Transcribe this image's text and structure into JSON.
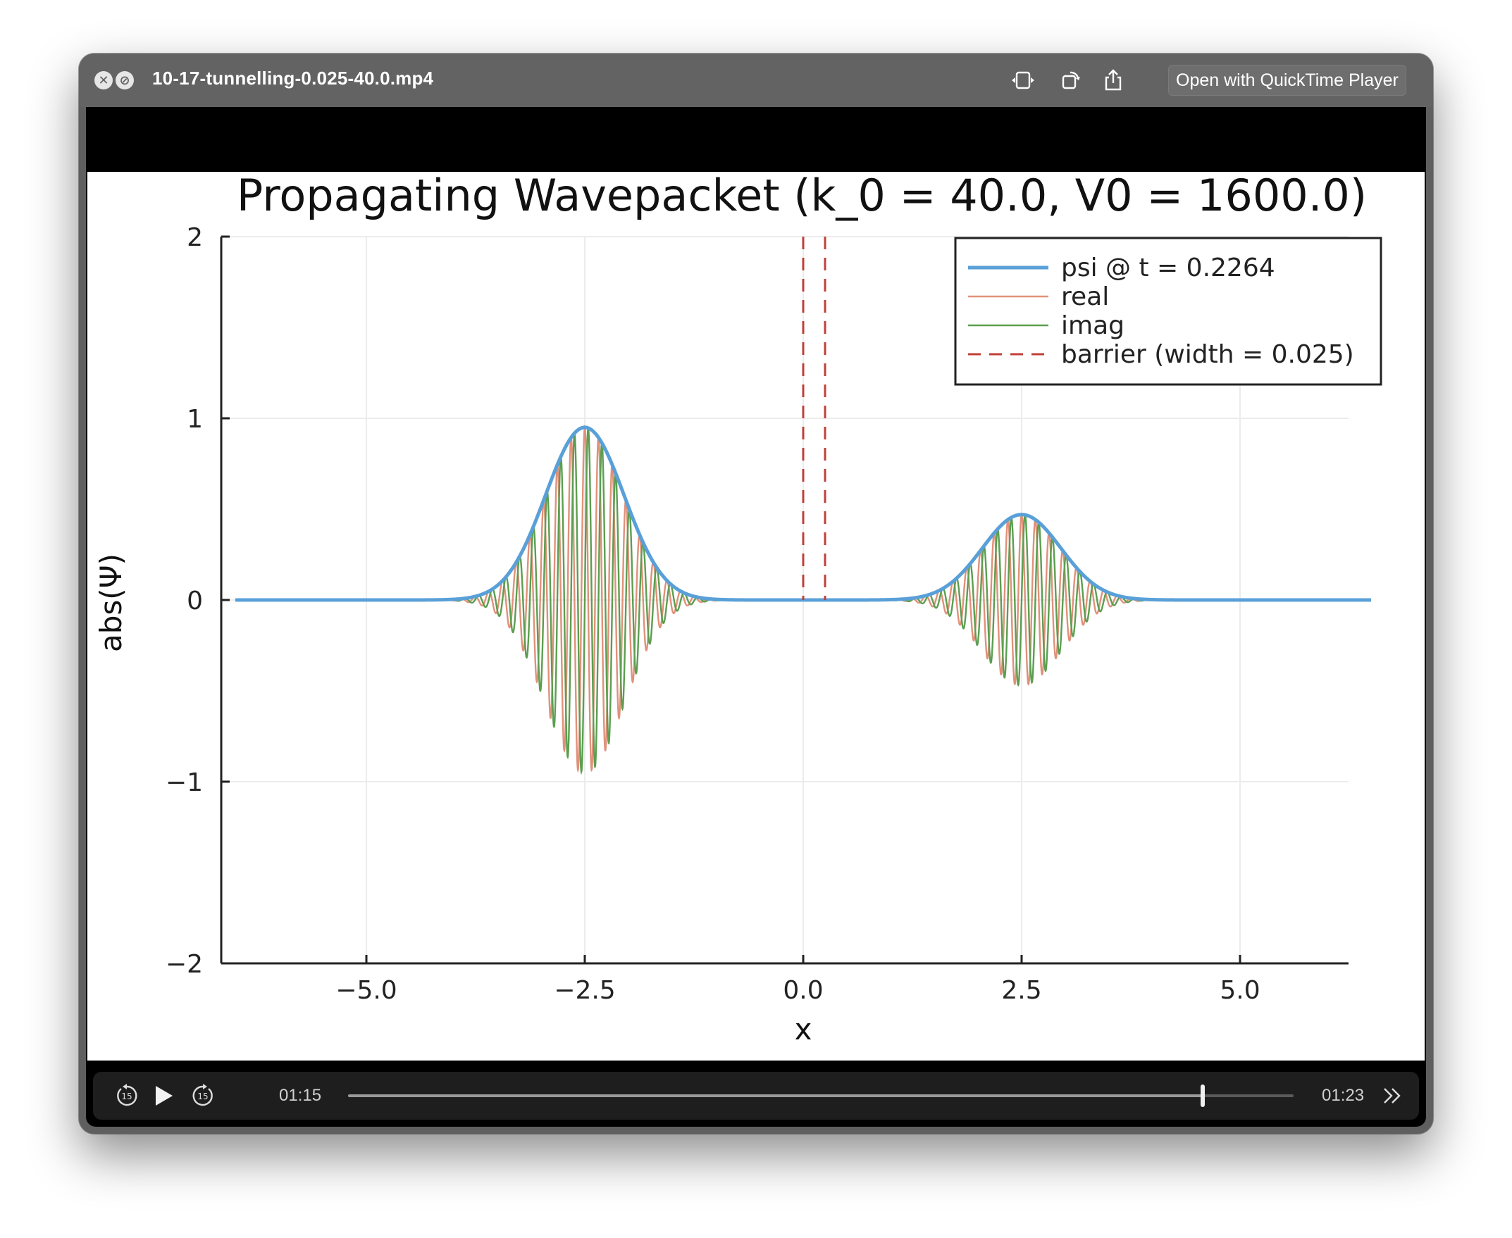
{
  "window": {
    "title": "10-17-tunnelling-0.025-40.0.mp4",
    "open_with_label": "Open with QuickTime Player",
    "icons": [
      "close-icon",
      "hide-icon",
      "fit-window-icon",
      "rotate-icon",
      "share-icon"
    ]
  },
  "player": {
    "elapsed": "01:15",
    "duration": "01:23",
    "progress": 0.9036,
    "skip_back_label": "15",
    "skip_forward_label": "15"
  },
  "chart_data": {
    "type": "line",
    "title": "Propagating Wavepacket (k_0 = 40.0, V0 = 1600.0)",
    "xlabel": "x",
    "ylabel": "abs(Ψ)",
    "xlim": [
      -6.5,
      6.5
    ],
    "ylim": [
      -2,
      2
    ],
    "xticks": [
      -5.0,
      -2.5,
      0.0,
      2.5,
      5.0
    ],
    "xtick_labels": [
      "−5.0",
      "−2.5",
      "0.0",
      "2.5",
      "5.0"
    ],
    "yticks": [
      -2,
      -1,
      0,
      1,
      2
    ],
    "ytick_labels": [
      "−2",
      "−1",
      "0",
      "1",
      "2"
    ],
    "grid": true,
    "legend_position": "top-right",
    "colors": {
      "psi": "#5aa0d8",
      "real": "#e0917a",
      "imag": "#5c9e50",
      "barrier": "#c0403a"
    },
    "series": [
      {
        "name": "psi @ t = 0.2264",
        "kind": "envelope",
        "packets": [
          {
            "center": -2.5,
            "amplitude": 0.95,
            "sigma": 0.45
          },
          {
            "center": 2.5,
            "amplitude": 0.47,
            "sigma": 0.45
          }
        ],
        "x_range": [
          -6.5,
          6.5
        ]
      },
      {
        "name": "real",
        "kind": "oscillation",
        "wavenumber": 40.0
      },
      {
        "name": "imag",
        "kind": "oscillation",
        "wavenumber": 40.0
      },
      {
        "name": "barrier (width = 0.025)",
        "kind": "vertical-dashed",
        "x": [
          0.0,
          0.25
        ]
      }
    ]
  }
}
